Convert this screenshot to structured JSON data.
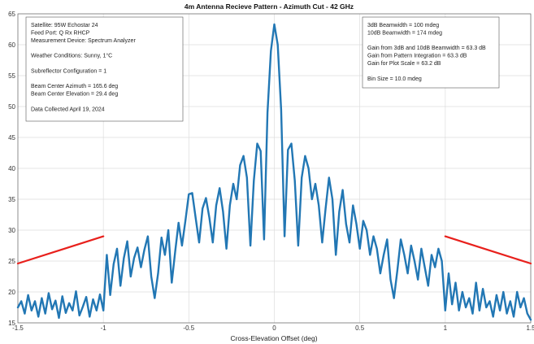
{
  "chart_data": {
    "type": "line",
    "title": "4m Antenna Recieve Pattern - Azimuth Cut - 42 GHz",
    "xlabel": "Cross-Elevation Offset (deg)",
    "ylabel": "",
    "xlim": [
      -1.5,
      1.5
    ],
    "ylim": [
      15,
      65
    ],
    "x_ticks": [
      -1.5,
      -1,
      -0.5,
      0,
      0.5,
      1,
      1.5
    ],
    "x_tick_labels": [
      "-1.5",
      "-1",
      "-0.5",
      "0",
      "0.5",
      "1",
      "1.5"
    ],
    "y_ticks": [
      15,
      20,
      25,
      30,
      35,
      40,
      45,
      50,
      55,
      60,
      65
    ],
    "y_tick_labels": [
      "15",
      "20",
      "25",
      "30",
      "35",
      "40",
      "45",
      "50",
      "55",
      "60",
      "65"
    ],
    "grid": true,
    "series": [
      {
        "color": "#2277b4",
        "points": [
          [
            -1.5,
            17.5
          ],
          [
            -1.48,
            18.5
          ],
          [
            -1.46,
            16.5
          ],
          [
            -1.44,
            19.5
          ],
          [
            -1.42,
            17.0
          ],
          [
            -1.4,
            18.5
          ],
          [
            -1.38,
            16.0
          ],
          [
            -1.36,
            19.0
          ],
          [
            -1.34,
            16.5
          ],
          [
            -1.32,
            19.8
          ],
          [
            -1.3,
            17.2
          ],
          [
            -1.28,
            18.6
          ],
          [
            -1.26,
            15.8
          ],
          [
            -1.24,
            19.3
          ],
          [
            -1.22,
            16.6
          ],
          [
            -1.2,
            18.2
          ],
          [
            -1.18,
            17.0
          ],
          [
            -1.16,
            20.1
          ],
          [
            -1.14,
            16.2
          ],
          [
            -1.12,
            17.6
          ],
          [
            -1.1,
            19.2
          ],
          [
            -1.08,
            16.0
          ],
          [
            -1.06,
            18.8
          ],
          [
            -1.04,
            17.0
          ],
          [
            -1.02,
            19.6
          ],
          [
            -1.0,
            17.0
          ],
          [
            -0.98,
            26.0
          ],
          [
            -0.96,
            19.5
          ],
          [
            -0.94,
            24.5
          ],
          [
            -0.92,
            27.0
          ],
          [
            -0.9,
            21.0
          ],
          [
            -0.88,
            25.5
          ],
          [
            -0.86,
            28.2
          ],
          [
            -0.84,
            22.5
          ],
          [
            -0.82,
            25.5
          ],
          [
            -0.8,
            27.2
          ],
          [
            -0.78,
            24.0
          ],
          [
            -0.76,
            26.8
          ],
          [
            -0.74,
            29.0
          ],
          [
            -0.72,
            22.5
          ],
          [
            -0.7,
            19.0
          ],
          [
            -0.68,
            23.0
          ],
          [
            -0.66,
            28.8
          ],
          [
            -0.64,
            26.0
          ],
          [
            -0.62,
            30.0
          ],
          [
            -0.6,
            21.5
          ],
          [
            -0.58,
            26.5
          ],
          [
            -0.56,
            31.2
          ],
          [
            -0.54,
            27.5
          ],
          [
            -0.52,
            31.5
          ],
          [
            -0.5,
            35.8
          ],
          [
            -0.48,
            36.0
          ],
          [
            -0.46,
            32.0
          ],
          [
            -0.44,
            28.0
          ],
          [
            -0.42,
            33.5
          ],
          [
            -0.4,
            35.2
          ],
          [
            -0.38,
            32.0
          ],
          [
            -0.36,
            28.0
          ],
          [
            -0.34,
            34.0
          ],
          [
            -0.32,
            36.8
          ],
          [
            -0.3,
            33.0
          ],
          [
            -0.28,
            27.0
          ],
          [
            -0.26,
            34.0
          ],
          [
            -0.24,
            37.5
          ],
          [
            -0.22,
            35.0
          ],
          [
            -0.2,
            40.5
          ],
          [
            -0.18,
            42.0
          ],
          [
            -0.16,
            38.5
          ],
          [
            -0.14,
            27.5
          ],
          [
            -0.12,
            38.0
          ],
          [
            -0.1,
            44.0
          ],
          [
            -0.08,
            42.8
          ],
          [
            -0.06,
            28.5
          ],
          [
            -0.04,
            49.0
          ],
          [
            -0.02,
            59.0
          ],
          [
            0.0,
            63.3
          ],
          [
            0.02,
            60.0
          ],
          [
            0.04,
            49.5
          ],
          [
            0.06,
            29.0
          ],
          [
            0.08,
            43.0
          ],
          [
            0.1,
            44.0
          ],
          [
            0.12,
            38.0
          ],
          [
            0.14,
            27.5
          ],
          [
            0.16,
            38.5
          ],
          [
            0.18,
            42.0
          ],
          [
            0.2,
            40.0
          ],
          [
            0.22,
            35.0
          ],
          [
            0.24,
            37.5
          ],
          [
            0.26,
            34.0
          ],
          [
            0.28,
            28.0
          ],
          [
            0.3,
            33.5
          ],
          [
            0.32,
            38.5
          ],
          [
            0.34,
            35.0
          ],
          [
            0.36,
            26.0
          ],
          [
            0.38,
            33.0
          ],
          [
            0.4,
            36.5
          ],
          [
            0.42,
            31.0
          ],
          [
            0.44,
            28.0
          ],
          [
            0.46,
            34.0
          ],
          [
            0.48,
            31.0
          ],
          [
            0.5,
            27.0
          ],
          [
            0.52,
            31.5
          ],
          [
            0.54,
            30.0
          ],
          [
            0.56,
            26.0
          ],
          [
            0.58,
            29.0
          ],
          [
            0.6,
            27.0
          ],
          [
            0.62,
            23.0
          ],
          [
            0.64,
            26.0
          ],
          [
            0.66,
            28.5
          ],
          [
            0.68,
            22.0
          ],
          [
            0.7,
            19.0
          ],
          [
            0.72,
            23.5
          ],
          [
            0.74,
            28.5
          ],
          [
            0.76,
            26.0
          ],
          [
            0.78,
            23.0
          ],
          [
            0.8,
            27.5
          ],
          [
            0.82,
            25.0
          ],
          [
            0.84,
            22.0
          ],
          [
            0.86,
            27.0
          ],
          [
            0.88,
            24.0
          ],
          [
            0.9,
            21.0
          ],
          [
            0.92,
            26.0
          ],
          [
            0.94,
            24.0
          ],
          [
            0.96,
            27.0
          ],
          [
            0.98,
            25.0
          ],
          [
            1.0,
            17.0
          ],
          [
            1.02,
            23.0
          ],
          [
            1.04,
            18.0
          ],
          [
            1.06,
            21.5
          ],
          [
            1.08,
            17.0
          ],
          [
            1.1,
            20.0
          ],
          [
            1.12,
            17.5
          ],
          [
            1.14,
            19.0
          ],
          [
            1.16,
            16.5
          ],
          [
            1.18,
            21.5
          ],
          [
            1.2,
            17.0
          ],
          [
            1.22,
            20.5
          ],
          [
            1.24,
            17.5
          ],
          [
            1.26,
            18.5
          ],
          [
            1.28,
            16.0
          ],
          [
            1.3,
            19.5
          ],
          [
            1.32,
            17.0
          ],
          [
            1.34,
            20.0
          ],
          [
            1.36,
            16.5
          ],
          [
            1.38,
            18.5
          ],
          [
            1.4,
            16.0
          ],
          [
            1.42,
            20.0
          ],
          [
            1.44,
            17.5
          ],
          [
            1.46,
            19.0
          ],
          [
            1.48,
            16.5
          ],
          [
            1.5,
            15.5
          ]
        ]
      },
      {
        "color": "#e8201c",
        "points": [
          [
            -1.5,
            24.6
          ],
          [
            -1.25,
            26.8
          ],
          [
            -1.0,
            29.0
          ]
        ]
      },
      {
        "color": "#e8201c",
        "points": [
          [
            1.0,
            29.0
          ],
          [
            1.25,
            26.8
          ],
          [
            1.5,
            24.6
          ]
        ]
      }
    ],
    "annotations": [
      {
        "lines": [
          "Satellite: 95W Echostar 24",
          "Feed Port: Q Rx RHCP",
          "Measurement Device: Spectrum Analyzer",
          "",
          "Weather Conditions: Sunny, 1°C",
          "",
          "Subreflector Configuration = 1",
          "",
          "Beam Center Azimuth = 165.6 deg",
          "Beam Center Elevation = 29.4 deg",
          "",
          "Data Collected April 19, 2024"
        ]
      },
      {
        "lines": [
          "3dB Beamwidth = 100 mdeg",
          "10dB Beamwidth = 174 mdeg",
          "",
          "Gain from 3dB and 10dB Beamwidth = 63.3 dB",
          "Gain from Pattern Integration = 63.3 dB",
          "Gain for Plot Scale = 63.2 dB",
          "",
          "Bin Size = 10.0 mdeg"
        ]
      }
    ]
  }
}
